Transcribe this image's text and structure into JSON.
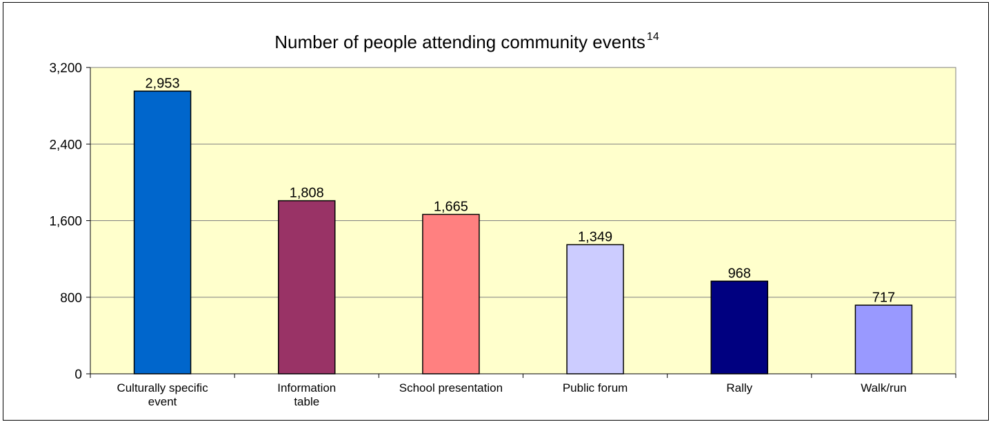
{
  "chart_data": {
    "type": "bar",
    "title": "Number of people attending community events",
    "title_superscript": "14",
    "xlabel": "",
    "ylabel": "",
    "ylim": [
      0,
      3200
    ],
    "yticks": [
      0,
      800,
      1600,
      2400,
      3200
    ],
    "ytick_labels": [
      "0",
      "800",
      "1,600",
      "2,400",
      "3,200"
    ],
    "grid": true,
    "legend": "none",
    "plot_background": "#FFFFCC",
    "categories": [
      [
        "Culturally specific",
        "event"
      ],
      [
        "Information",
        "table"
      ],
      [
        "School presentation"
      ],
      [
        "Public forum"
      ],
      [
        "Rally"
      ],
      [
        "Walk/run"
      ]
    ],
    "values": [
      2953,
      1808,
      1665,
      1349,
      968,
      717
    ],
    "value_labels": [
      "2,953",
      "1,808",
      "1,665",
      "1,349",
      "968",
      "717"
    ],
    "colors": [
      "#0066CC",
      "#993366",
      "#FF8080",
      "#CCCCFF",
      "#000080",
      "#9999FF"
    ]
  }
}
